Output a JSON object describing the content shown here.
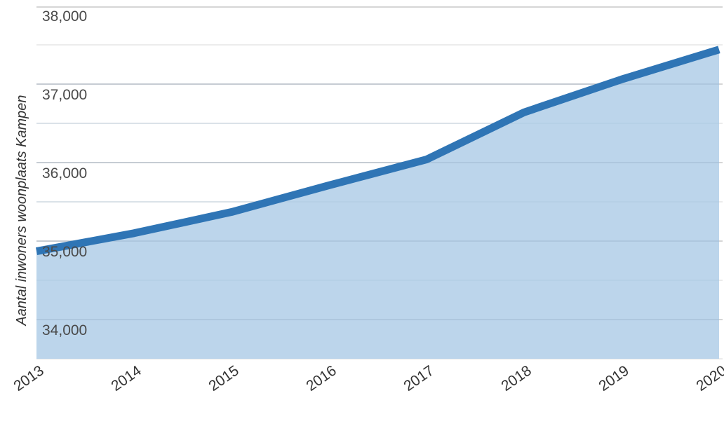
{
  "chart_data": {
    "type": "area",
    "title": "",
    "xlabel": "",
    "ylabel": "Aantal inwoners woonplaats Kampen",
    "x": [
      "2013",
      "2014",
      "2015",
      "2016",
      "2017",
      "2018",
      "2019",
      "2020"
    ],
    "series": [
      {
        "values": [
          34870,
          35100,
          35370,
          35710,
          36040,
          36640,
          37060,
          37440
        ]
      }
    ],
    "ylim": [
      33500,
      38200
    ],
    "yticks": [
      "34,000",
      "35,000",
      "36,000",
      "37,000",
      "38,000"
    ],
    "grid": true,
    "legend": "none",
    "colors": {
      "line": "#2f75b5",
      "fill": "#b8d3ea",
      "major_grid": "#c8c8c8",
      "minor_grid": "#e6e6e6"
    }
  }
}
